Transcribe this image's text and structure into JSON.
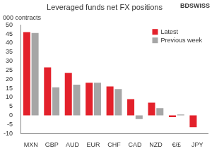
{
  "chart_data": {
    "type": "bar",
    "title": "Leveraged funds net FX positions",
    "y_label": "000 contracts",
    "annotations": [
      "BDSWISS"
    ],
    "categories": [
      "MXN",
      "GBP",
      "AUD",
      "EUR",
      "CHF",
      "CAD",
      "NZD",
      "€/£",
      "JPY"
    ],
    "series": [
      {
        "name": "Latest",
        "color": "#e3212b",
        "values": [
          46,
          26.5,
          23.5,
          18,
          16,
          9,
          7,
          -1,
          -6.5
        ]
      },
      {
        "name": "Previous week",
        "color": "#a6a6a6",
        "values": [
          45.5,
          15.5,
          17,
          18,
          14.5,
          -2,
          4,
          0.5,
          0
        ]
      }
    ],
    "ylim": [
      -10,
      50
    ],
    "yticks": [
      -10,
      -5,
      0,
      5,
      10,
      15,
      20,
      25,
      30,
      35,
      40,
      45,
      50
    ],
    "grid": false,
    "legend": "upper right"
  }
}
